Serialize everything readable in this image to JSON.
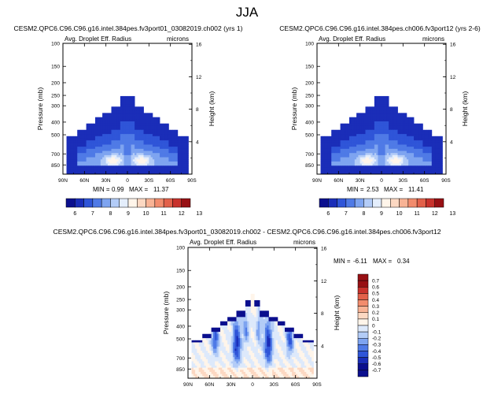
{
  "page_title": "JJA",
  "colors": {
    "cmap_pos": [
      "#0b0f8e",
      "#1a2db8",
      "#2f55d8",
      "#4f7ae6",
      "#7ea4f0",
      "#b3ccf7",
      "#e4eefc",
      "#fff5ea",
      "#fcd8c2",
      "#f8b395",
      "#f28c6d",
      "#e2614a",
      "#c8322c",
      "#981014"
    ],
    "cmap_diff": [
      "#0b0f8e",
      "#1a2db8",
      "#2f55d8",
      "#4f7ae6",
      "#7ea4f0",
      "#b3ccf7",
      "#dde9fb",
      "#fff5ea",
      "#fcd8c2",
      "#f8b395",
      "#f28c6d",
      "#e2614a",
      "#c8322c",
      "#981014"
    ]
  },
  "chart_data": [
    {
      "type": "heatmap",
      "title": "CESM2.QPC6.C96.C96.g16.intel.384pes.fv3port01_03082019.ch002 (yrs 1)",
      "subtitle_left": "Avg. Droplet Eff. Radius",
      "subtitle_right": "microns",
      "xlabel": "",
      "ylabel": "Pressure (mb)",
      "ylabel_right": "Height (km)",
      "x_ticks": [
        "90N",
        "60N",
        "30N",
        "0",
        "30S",
        "60S",
        "90S"
      ],
      "y_ticks": [
        "100",
        "150",
        "200",
        "250",
        "300",
        "400",
        "500",
        "700",
        "850"
      ],
      "y_ticks_right": [
        "16",
        "12",
        "8",
        "4"
      ],
      "min_label": "MIN =",
      "min_value": "0.99",
      "max_label": "MAX =",
      "max_value": "11.37",
      "colorbar_ticks": [
        "6",
        "7",
        "8",
        "9",
        "10",
        "11",
        "12",
        "13"
      ],
      "ylim": [
        1000,
        100
      ]
    },
    {
      "type": "heatmap",
      "title": "CESM2.QPC6.C96.C96.g16.intel.384pes.ch006.fv3port12 (yrs 2-6)",
      "subtitle_left": "Avg. Droplet Eff. Radius",
      "subtitle_right": "microns",
      "xlabel": "",
      "ylabel": "Pressure (mb)",
      "ylabel_right": "Height (km)",
      "x_ticks": [
        "90N",
        "60N",
        "30N",
        "0",
        "30S",
        "60S",
        "90S"
      ],
      "y_ticks": [
        "100",
        "150",
        "200",
        "250",
        "300",
        "400",
        "500",
        "700",
        "850"
      ],
      "y_ticks_right": [
        "16",
        "12",
        "8",
        "4"
      ],
      "min_label": "MIN =",
      "min_value": "2.53",
      "max_label": "MAX =",
      "max_value": "11.41",
      "colorbar_ticks": [
        "6",
        "7",
        "8",
        "9",
        "10",
        "11",
        "12",
        "13"
      ],
      "ylim": [
        1000,
        100
      ]
    },
    {
      "type": "heatmap",
      "title": "CESM2.QPC6.C96.C96.g16.intel.384pes.fv3port01_03082019.ch002 - CESM2.QPC6.C96.C96.g16.intel.384pes.ch006.fv3port12",
      "subtitle_left": "Avg. Droplet Eff. Radius",
      "subtitle_right": "microns",
      "xlabel": "",
      "ylabel": "Pressure (mb)",
      "ylabel_right": "Height (km)",
      "x_ticks": [
        "90N",
        "60N",
        "30N",
        "0",
        "30S",
        "60S",
        "90S"
      ],
      "y_ticks": [
        "100",
        "150",
        "200",
        "250",
        "300",
        "400",
        "500",
        "700",
        "850"
      ],
      "y_ticks_right": [
        "16",
        "12",
        "8",
        "4"
      ],
      "min_label": "MIN =",
      "min_value": "-6.11",
      "max_label": "MAX =",
      "max_value": "0.34",
      "colorbar_ticks": [
        "0.7",
        "0.6",
        "0.5",
        "0.4",
        "0.3",
        "0.2",
        "0.1",
        "0",
        "-0.1",
        "-0.2",
        "-0.3",
        "-0.4",
        "-0.5",
        "-0.6",
        "-0.7"
      ],
      "ylim": [
        1000,
        100
      ]
    }
  ]
}
